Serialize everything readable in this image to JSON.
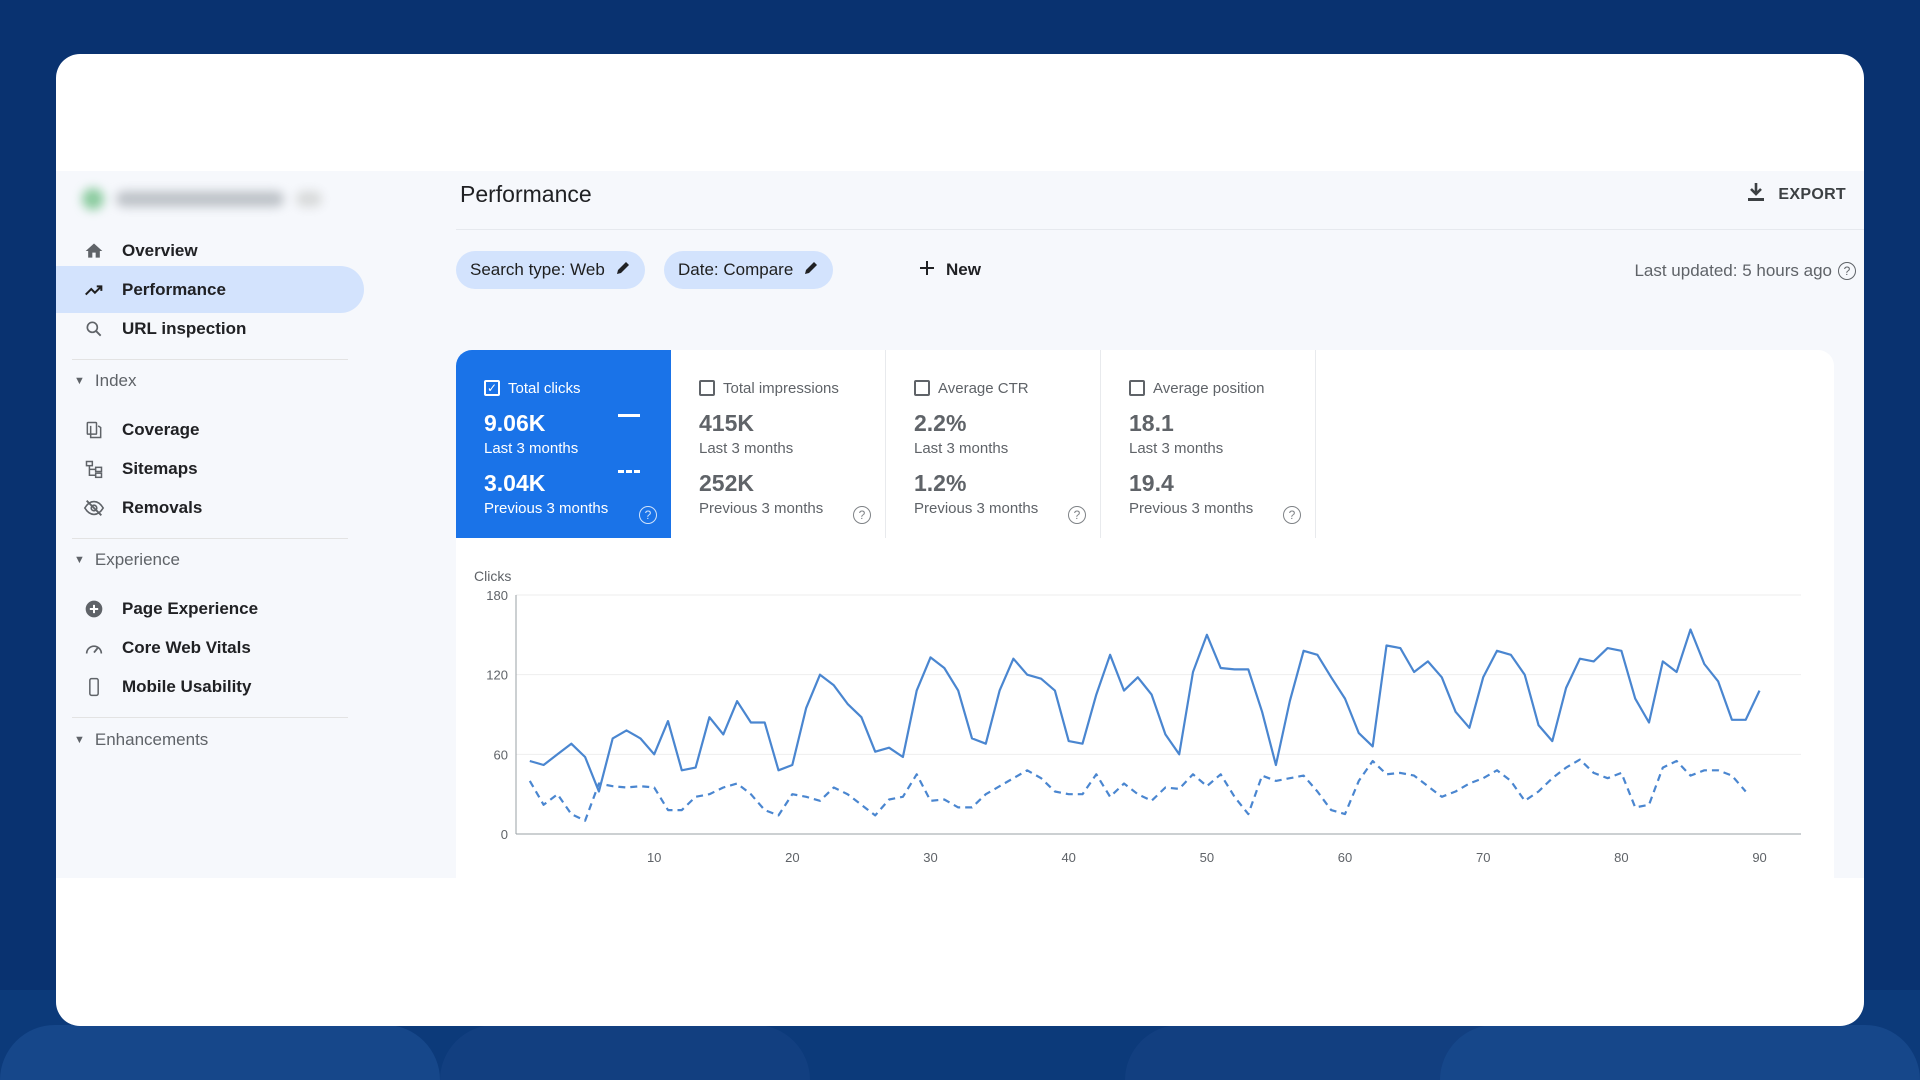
{
  "sidebar": {
    "items": [
      {
        "label": "Overview",
        "icon": "home-icon"
      },
      {
        "label": "Performance",
        "icon": "trending-up-icon",
        "active": true
      },
      {
        "label": "URL inspection",
        "icon": "search-icon"
      }
    ],
    "sections": [
      {
        "label": "Index",
        "items": [
          {
            "label": "Coverage",
            "icon": "file-copy-icon"
          },
          {
            "label": "Sitemaps",
            "icon": "sitemap-icon"
          },
          {
            "label": "Removals",
            "icon": "eye-off-icon"
          }
        ]
      },
      {
        "label": "Experience",
        "items": [
          {
            "label": "Page Experience",
            "icon": "plus-circle-icon"
          },
          {
            "label": "Core Web Vitals",
            "icon": "gauge-icon"
          },
          {
            "label": "Mobile Usability",
            "icon": "phone-icon"
          }
        ]
      },
      {
        "label": "Enhancements",
        "items": []
      }
    ]
  },
  "header": {
    "title": "Performance",
    "export_label": "EXPORT"
  },
  "filters": {
    "chips": [
      "Search type: Web",
      "Date: Compare"
    ],
    "new_label": "New",
    "last_updated": "Last updated: 5 hours ago"
  },
  "metrics": [
    {
      "label": "Total clicks",
      "checked": true,
      "current": "9.06K",
      "current_label": "Last 3 months",
      "previous": "3.04K",
      "previous_label": "Previous 3 months"
    },
    {
      "label": "Total impressions",
      "checked": false,
      "current": "415K",
      "current_label": "Last 3 months",
      "previous": "252K",
      "previous_label": "Previous 3 months"
    },
    {
      "label": "Average CTR",
      "checked": false,
      "current": "2.2%",
      "current_label": "Last 3 months",
      "previous": "1.2%",
      "previous_label": "Previous 3 months"
    },
    {
      "label": "Average position",
      "checked": false,
      "current": "18.1",
      "current_label": "Last 3 months",
      "previous": "19.4",
      "previous_label": "Previous 3 months"
    }
  ],
  "colors": {
    "accent": "#1a73e8",
    "active_nav": "#d3e3fd",
    "line": "#4a86d0"
  },
  "chart_data": {
    "type": "line",
    "ylabel": "Clicks",
    "ylim": [
      0,
      180
    ],
    "yticks": [
      0,
      60,
      120,
      180
    ],
    "xlim": [
      0,
      93
    ],
    "xticks": [
      10,
      20,
      30,
      40,
      50,
      60,
      70,
      80,
      90
    ],
    "grid": true,
    "series": [
      {
        "style": "solid",
        "values": [
          55,
          52,
          60,
          68,
          58,
          32,
          72,
          78,
          72,
          60,
          85,
          48,
          50,
          88,
          75,
          100,
          84,
          84,
          48,
          52,
          95,
          120,
          112,
          98,
          88,
          62,
          65,
          58,
          108,
          133,
          125,
          108,
          72,
          68,
          108,
          132,
          120,
          117,
          108,
          70,
          68,
          105,
          135,
          108,
          118,
          105,
          75,
          60,
          122,
          150,
          125,
          124,
          124,
          92,
          52,
          100,
          138,
          135,
          118,
          102,
          76,
          66,
          142,
          140,
          122,
          130,
          118,
          92,
          80,
          118,
          138,
          135,
          120,
          82,
          70,
          110,
          132,
          130,
          140,
          138,
          102,
          84,
          130,
          122,
          154,
          128,
          115,
          86,
          86,
          108
        ]
      },
      {
        "style": "dashed",
        "values": [
          40,
          22,
          30,
          15,
          10,
          38,
          36,
          35,
          36,
          35,
          18,
          18,
          28,
          30,
          35,
          38,
          30,
          18,
          14,
          30,
          28,
          25,
          35,
          30,
          22,
          14,
          26,
          28,
          45,
          25,
          26,
          20,
          20,
          30,
          36,
          42,
          48,
          42,
          32,
          30,
          30,
          45,
          28,
          38,
          30,
          25,
          35,
          34,
          45,
          36,
          45,
          28,
          15,
          44,
          40,
          42,
          44,
          32,
          18,
          15,
          40,
          55,
          45,
          46,
          44,
          36,
          28,
          32,
          38,
          42,
          48,
          40,
          25,
          32,
          42,
          50,
          56,
          46,
          42,
          46,
          20,
          22,
          50,
          55,
          44,
          48,
          48,
          44,
          32
        ]
      }
    ]
  }
}
